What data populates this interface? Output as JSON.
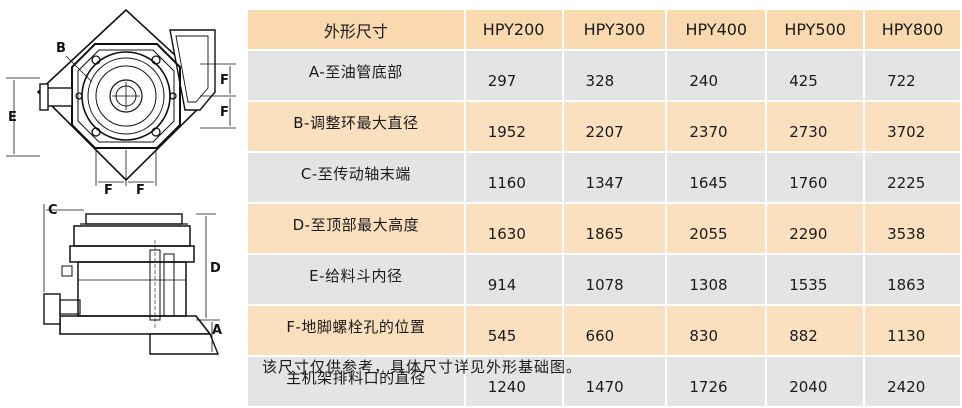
{
  "drawing": {
    "letters": {
      "a": "A",
      "b": "B",
      "c": "C",
      "d": "D",
      "e": "E",
      "f": "F"
    }
  },
  "table": {
    "header": [
      "外形尺寸",
      "HPY200",
      "HPY300",
      "HPY400",
      "HPY500",
      "HPY800"
    ],
    "rows": [
      {
        "label": "A-至油管底部",
        "values": [
          "297",
          "328",
          "240",
          "425",
          "722"
        ]
      },
      {
        "label": "B-调整环最大直径",
        "values": [
          "1952",
          "2207",
          "2370",
          "2730",
          "3702"
        ]
      },
      {
        "label": "C-至传动轴末端",
        "values": [
          "1160",
          "1347",
          "1645",
          "1760",
          "2225"
        ]
      },
      {
        "label": "D-至顶部最大高度",
        "values": [
          "1630",
          "1865",
          "2055",
          "2290",
          "3538"
        ]
      },
      {
        "label": "E-给料斗内径",
        "values": [
          "914",
          "1078",
          "1308",
          "1535",
          "1863"
        ]
      },
      {
        "label": "F-地脚螺栓孔的位置",
        "values": [
          "545",
          "660",
          "830",
          "882",
          "1130"
        ]
      },
      {
        "label": "主机架排料口的直径",
        "values": [
          "1240",
          "1470",
          "1726",
          "2040",
          "2420"
        ]
      }
    ]
  },
  "footnote": "该尺寸仅供参考，具体尺寸详见外形基础图。"
}
